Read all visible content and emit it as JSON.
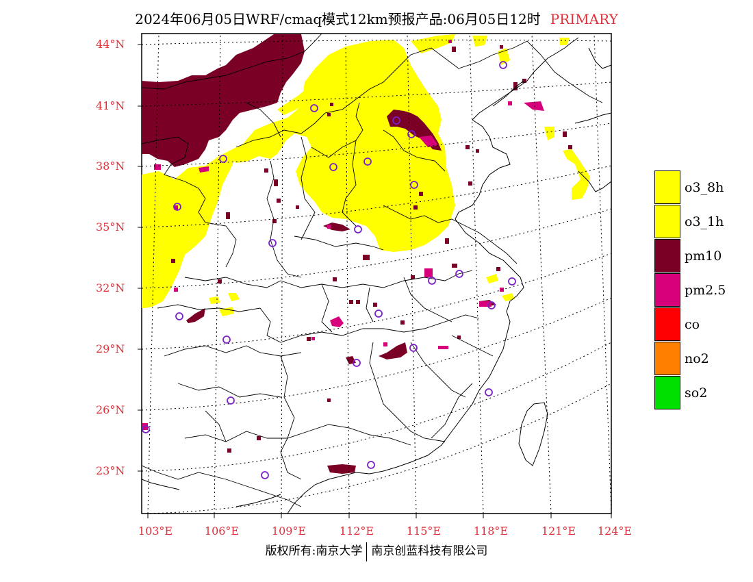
{
  "title": {
    "main": "2024年06月05日WRF/cmaq模式12km预报产品:06月05日12时",
    "tag": "PRIMARY"
  },
  "latitude_labels": [
    "44°N",
    "41°N",
    "38°N",
    "35°N",
    "32°N",
    "29°N",
    "26°N",
    "23°N"
  ],
  "longitude_labels": [
    "103°E",
    "106°E",
    "109°E",
    "112°E",
    "115°E",
    "118°E",
    "121°E",
    "124°E"
  ],
  "legend": [
    {
      "label": "o3_8h",
      "color": "#ffff00"
    },
    {
      "label": "o3_1h",
      "color": "#ffff00"
    },
    {
      "label": "pm10",
      "color": "#7a0026"
    },
    {
      "label": "pm2.5",
      "color": "#d6007a"
    },
    {
      "label": "co",
      "color": "#ff0000"
    },
    {
      "label": "no2",
      "color": "#ff8000"
    },
    {
      "label": "so2",
      "color": "#00e000"
    }
  ],
  "copyright": {
    "left": "版权所有:南京大学",
    "right": "南京创蓝科技有限公司"
  },
  "colors": {
    "accent_red": "#e0303a",
    "station_marker": "#7a20c8"
  }
}
